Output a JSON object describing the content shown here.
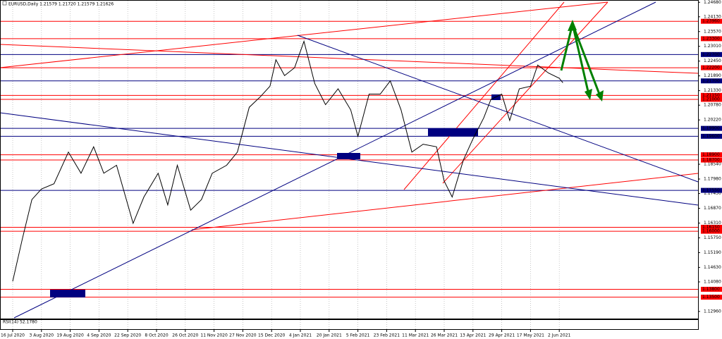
{
  "chart_data": {
    "type": "line",
    "title": "EURUSD,Daily  1.21579 1.21720 1.21579 1.21626",
    "annotations": [
      "RSI(14) 52.1780"
    ],
    "color": "#000000",
    "series": [
      {
        "color": "#000000",
        "x": [
          "2020-07-16",
          "2020-07-22",
          "2020-07-28",
          "2020-08-03",
          "2020-08-10",
          "2020-08-18",
          "2020-08-25",
          "2020-09-01",
          "2020-09-07",
          "2020-09-15",
          "2020-09-25",
          "2020-10-01",
          "2020-10-09",
          "2020-10-15",
          "2020-10-21",
          "2020-10-29",
          "2020-11-04",
          "2020-11-10",
          "2020-11-18",
          "2020-11-24",
          "2020-12-01",
          "2020-12-08",
          "2020-12-14",
          "2020-12-18",
          "2020-12-24",
          "2020-12-31",
          "2021-01-06",
          "2021-01-12",
          "2021-01-18",
          "2021-01-25",
          "2021-02-01",
          "2021-02-05",
          "2021-02-12",
          "2021-02-19",
          "2021-02-25",
          "2021-03-03",
          "2021-03-09",
          "2021-03-15",
          "2021-03-22",
          "2021-03-26",
          "2021-03-31",
          "2021-04-07",
          "2021-04-13",
          "2021-04-19",
          "2021-04-23",
          "2021-04-29",
          "2021-05-04",
          "2021-05-10",
          "2021-05-17",
          "2021-05-21",
          "2021-05-27",
          "2021-06-02",
          "2021-06-04"
        ],
        "values": [
          1.141,
          1.157,
          1.172,
          1.176,
          1.178,
          1.19,
          1.182,
          1.192,
          1.182,
          1.185,
          1.163,
          1.173,
          1.182,
          1.17,
          1.185,
          1.168,
          1.172,
          1.182,
          1.185,
          1.19,
          1.207,
          1.211,
          1.215,
          1.225,
          1.219,
          1.222,
          1.232,
          1.216,
          1.208,
          1.214,
          1.206,
          1.196,
          1.212,
          1.212,
          1.217,
          1.206,
          1.19,
          1.193,
          1.192,
          1.179,
          1.173,
          1.187,
          1.195,
          1.203,
          1.21,
          1.212,
          1.202,
          1.214,
          1.215,
          1.223,
          1.22,
          1.218,
          1.2163
        ]
      }
    ],
    "ylim": [
      1.2474,
      1.1269
    ],
    "yticks": [
      {
        "value": 1.2468,
        "label": "1.24680"
      },
      {
        "value": 1.2413,
        "label": "1.24130"
      },
      {
        "value": 1.2357,
        "label": "1.23570"
      },
      {
        "value": 1.2301,
        "label": "1.23010"
      },
      {
        "value": 1.2245,
        "label": "1.22450"
      },
      {
        "value": 1.2189,
        "label": "1.21890"
      },
      {
        "value": 1.2133,
        "label": "1.21330"
      },
      {
        "value": 1.2078,
        "label": "1.20780"
      },
      {
        "value": 1.2022,
        "label": "1.20220"
      },
      {
        "value": 1.1854,
        "label": "1.18540"
      },
      {
        "value": 1.1798,
        "label": "1.17980"
      },
      {
        "value": 1.1743,
        "label": "1.17430"
      },
      {
        "value": 1.1687,
        "label": "1.16870"
      },
      {
        "value": 1.1631,
        "label": "1.16310"
      },
      {
        "value": 1.1575,
        "label": "1.15750"
      },
      {
        "value": 1.1519,
        "label": "1.15190"
      },
      {
        "value": 1.1463,
        "label": "1.14630"
      },
      {
        "value": 1.1408,
        "label": "1.14080"
      },
      {
        "value": 1.1296,
        "label": "1.12960"
      }
    ],
    "levels": [
      {
        "value": 1.2396,
        "label": "1.23960",
        "color": "#ff0000"
      },
      {
        "value": 1.233,
        "label": "1.23300",
        "color": "#ff0000"
      },
      {
        "value": 1.227,
        "label": "1.22700",
        "color": "#000080"
      },
      {
        "value": 1.222,
        "label": "1.22200",
        "color": "#ff0000"
      },
      {
        "value": 1.217,
        "label": "1.21700",
        "color": "#000080"
      },
      {
        "value": 1.2115,
        "label": "1.21150",
        "color": "#ff0000"
      },
      {
        "value": 1.21,
        "label": "1.21000",
        "color": "#ff0000"
      },
      {
        "value": 1.199,
        "label": "1.19900",
        "color": "#000080"
      },
      {
        "value": 1.196,
        "label": "1.19600",
        "color": "#000080"
      },
      {
        "value": 1.189,
        "label": "1.18900",
        "color": "#ff0000"
      },
      {
        "value": 1.187,
        "label": "1.18700",
        "color": "#ff0000"
      },
      {
        "value": 1.1755,
        "label": "1.17550",
        "color": "#000080"
      },
      {
        "value": 1.1615,
        "label": "1.16150",
        "color": "#ff0000"
      },
      {
        "value": 1.16,
        "label": "1.16000",
        "color": "#ff0000"
      },
      {
        "value": 1.138,
        "label": "1.13800",
        "color": "#ff0000"
      },
      {
        "value": 1.135,
        "label": "1.13500",
        "color": "#ff0000"
      }
    ],
    "xticks": [
      {
        "value": "2020-07-16",
        "label": "16 Jul 2020"
      },
      {
        "value": "2020-08-03",
        "label": "3 Aug 2020"
      },
      {
        "value": "2020-08-19",
        "label": "19 Aug 2020"
      },
      {
        "value": "2020-09-04",
        "label": "4 Sep 2020"
      },
      {
        "value": "2020-09-22",
        "label": "22 Sep 2020"
      },
      {
        "value": "2020-10-08",
        "label": "8 Oct 2020"
      },
      {
        "value": "2020-10-26",
        "label": "26 Oct 2020"
      },
      {
        "value": "2020-11-11",
        "label": "11 Nov 2020"
      },
      {
        "value": "2020-11-27",
        "label": "27 Nov 2020"
      },
      {
        "value": "2020-12-15",
        "label": "15 Dec 2020"
      },
      {
        "value": "2021-01-04",
        "label": "4 Jan 2021"
      },
      {
        "value": "2021-01-20",
        "label": "20 Jan 2021"
      },
      {
        "value": "2021-02-05",
        "label": "5 Feb 2021"
      },
      {
        "value": "2021-02-23",
        "label": "23 Feb 2021"
      },
      {
        "value": "2021-03-11",
        "label": "11 Mar 2021"
      },
      {
        "value": "2021-03-26",
        "label": "26 Mar 2021"
      },
      {
        "value": "2021-04-13",
        "label": "13 Apr 2021"
      },
      {
        "value": "2021-04-29",
        "label": "29 Apr 2021"
      },
      {
        "value": "2021-05-17",
        "label": "17 May 2021"
      },
      {
        "value": "2021-06-02",
        "label": "2 Jun 2021"
      }
    ],
    "grid": true
  }
}
